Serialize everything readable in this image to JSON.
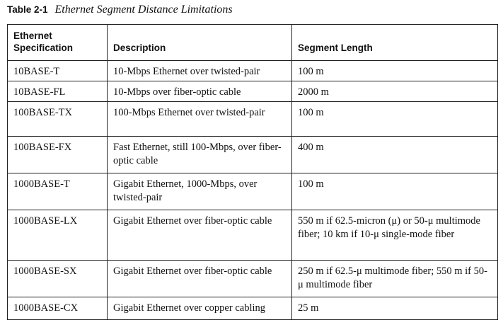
{
  "caption": {
    "number": "Table 2-1",
    "title": "Ethernet Segment Distance Limitations"
  },
  "columns": [
    "Ethernet Specification",
    "Description",
    "Segment Length"
  ],
  "rows": [
    {
      "spec": "10BASE-T",
      "desc": "10-Mbps Ethernet over twisted-pair",
      "length": "100 m"
    },
    {
      "spec": "10BASE-FL",
      "desc": "10-Mbps over fiber-optic cable",
      "length": "2000 m"
    },
    {
      "spec": "100BASE-TX",
      "desc": "100-Mbps Ethernet over twisted-pair",
      "length": "100 m"
    },
    {
      "spec": "100BASE-FX",
      "desc": "Fast Ethernet, still 100-Mbps, over fiber-optic cable",
      "length": "400 m"
    },
    {
      "spec": "1000BASE-T",
      "desc": "Gigabit Ethernet, 1000-Mbps, over twisted-pair",
      "length": "100 m"
    },
    {
      "spec": "1000BASE-LX",
      "desc": "Gigabit Ethernet over fiber-optic cable",
      "length": "550 m if 62.5-micron (μ) or 50-μ multimode fiber; 10 km if 10-μ single-mode fiber"
    },
    {
      "spec": "1000BASE-SX",
      "desc": "Gigabit Ethernet over fiber-optic cable",
      "length": "250 m if 62.5-μ multimode fiber; 550 m if 50-μ multimode fiber"
    },
    {
      "spec": "1000BASE-CX",
      "desc": "Gigabit Ethernet over copper cabling",
      "length": "25 m"
    }
  ]
}
